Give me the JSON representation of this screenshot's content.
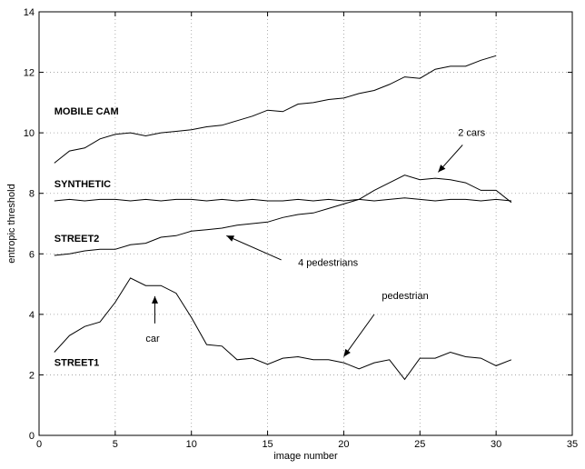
{
  "chart_data": {
    "type": "line",
    "xlabel": "image number",
    "ylabel": "entropic threshold",
    "xlim": [
      0,
      35
    ],
    "ylim": [
      0,
      14
    ],
    "xticks": [
      0,
      5,
      10,
      15,
      20,
      25,
      30,
      35
    ],
    "yticks": [
      0,
      2,
      4,
      6,
      8,
      10,
      12,
      14
    ],
    "grid": true,
    "legend": "none",
    "series": [
      {
        "name": "MOBILE CAM",
        "x": [
          1,
          2,
          3,
          4,
          5,
          6,
          7,
          8,
          9,
          10,
          11,
          12,
          13,
          14,
          15,
          16,
          17,
          18,
          19,
          20,
          21,
          22,
          23,
          24,
          25,
          26,
          27,
          28,
          29,
          30
        ],
        "values": [
          9.0,
          9.4,
          9.5,
          9.8,
          9.95,
          10.0,
          9.9,
          10.0,
          10.05,
          10.1,
          10.2,
          10.25,
          10.4,
          10.55,
          10.75,
          10.7,
          10.95,
          11.0,
          11.1,
          11.15,
          11.3,
          11.4,
          11.6,
          11.85,
          11.8,
          12.1,
          12.2,
          12.2,
          12.4,
          12.55
        ]
      },
      {
        "name": "SYNTHETIC",
        "x": [
          1,
          2,
          3,
          4,
          5,
          6,
          7,
          8,
          9,
          10,
          11,
          12,
          13,
          14,
          15,
          16,
          17,
          18,
          19,
          20,
          21,
          22,
          23,
          24,
          25,
          26,
          27,
          28,
          29,
          30,
          31
        ],
        "values": [
          7.75,
          7.8,
          7.75,
          7.8,
          7.8,
          7.75,
          7.8,
          7.75,
          7.8,
          7.8,
          7.75,
          7.8,
          7.75,
          7.8,
          7.75,
          7.75,
          7.8,
          7.75,
          7.8,
          7.75,
          7.8,
          7.75,
          7.8,
          7.85,
          7.8,
          7.75,
          7.8,
          7.8,
          7.75,
          7.8,
          7.75
        ]
      },
      {
        "name": "STREET2",
        "x": [
          1,
          2,
          3,
          4,
          5,
          6,
          7,
          8,
          9,
          10,
          11,
          12,
          13,
          14,
          15,
          16,
          17,
          18,
          19,
          20,
          21,
          22,
          23,
          24,
          25,
          26,
          27,
          28,
          29,
          30,
          31
        ],
        "values": [
          5.95,
          6.0,
          6.1,
          6.15,
          6.15,
          6.3,
          6.35,
          6.55,
          6.6,
          6.75,
          6.8,
          6.85,
          6.95,
          7.0,
          7.05,
          7.2,
          7.3,
          7.35,
          7.5,
          7.65,
          7.8,
          8.1,
          8.35,
          8.6,
          8.45,
          8.5,
          8.45,
          8.35,
          8.1,
          8.1,
          7.7
        ]
      },
      {
        "name": "STREET1",
        "x": [
          1,
          2,
          3,
          4,
          5,
          6,
          7,
          8,
          9,
          10,
          11,
          12,
          13,
          14,
          15,
          16,
          17,
          18,
          19,
          20,
          21,
          22,
          23,
          24,
          25,
          26,
          27,
          28,
          29,
          30,
          31
        ],
        "values": [
          2.75,
          3.3,
          3.6,
          3.75,
          4.4,
          5.2,
          4.95,
          4.95,
          4.7,
          3.9,
          3.0,
          2.95,
          2.5,
          2.55,
          2.35,
          2.55,
          2.6,
          2.5,
          2.5,
          2.4,
          2.2,
          2.4,
          2.5,
          1.85,
          2.55,
          2.55,
          2.75,
          2.6,
          2.55,
          2.3,
          2.5
        ]
      }
    ],
    "series_labels": [
      {
        "text": "MOBILE CAM",
        "x": 1.0,
        "y": 10.6
      },
      {
        "text": "SYNTHETIC",
        "x": 1.0,
        "y": 8.2
      },
      {
        "text": "STREET2",
        "x": 1.0,
        "y": 6.4
      },
      {
        "text": "STREET1",
        "x": 1.0,
        "y": 2.3
      }
    ],
    "annotations": [
      {
        "text": "2 cars",
        "text_x": 27.5,
        "text_y": 9.9,
        "arrow_from": [
          27.8,
          9.6
        ],
        "arrow_to": [
          26.2,
          8.7
        ]
      },
      {
        "text": "4 pedestrians",
        "text_x": 17.0,
        "text_y": 5.6,
        "arrow_from": [
          15.9,
          5.8
        ],
        "arrow_to": [
          12.3,
          6.6
        ]
      },
      {
        "text": "car",
        "text_x": 7.0,
        "text_y": 3.1,
        "arrow_from": [
          7.6,
          3.7
        ],
        "arrow_to": [
          7.6,
          4.6
        ]
      },
      {
        "text": "pedestrian",
        "text_x": 22.5,
        "text_y": 4.5,
        "arrow_from": [
          22.0,
          4.0
        ],
        "arrow_to": [
          20.0,
          2.6
        ]
      }
    ]
  }
}
